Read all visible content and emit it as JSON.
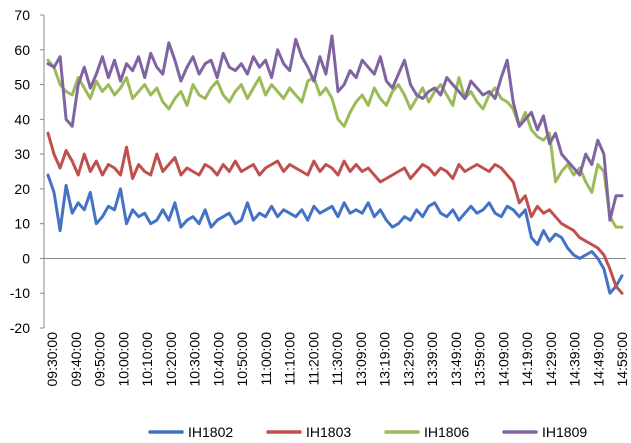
{
  "chart_data": {
    "type": "line",
    "ylim": [
      -20,
      70
    ],
    "yticks": [
      -20,
      -10,
      0,
      10,
      20,
      30,
      40,
      50,
      60,
      70
    ],
    "gridlines": false,
    "legend_position": "bottom",
    "x_tick_labels": [
      "09:30:00",
      "09:40:00",
      "09:50:00",
      "10:00:00",
      "10:10:00",
      "10:20:00",
      "10:30:00",
      "10:40:00",
      "10:50:00",
      "11:00:00",
      "11:10:00",
      "11:20:00",
      "11:30:00",
      "13:09:00",
      "13:19:00",
      "13:29:00",
      "13:39:00",
      "13:49:00",
      "13:59:00",
      "14:09:00",
      "14:19:00",
      "14:29:00",
      "14:39:00",
      "14:49:00",
      "14:59:00"
    ],
    "series": [
      {
        "name": "IH1802",
        "color": "#4472C4",
        "values": [
          24,
          19,
          8,
          21,
          13,
          16,
          14,
          19,
          10,
          12,
          15,
          14,
          20,
          10,
          14,
          12,
          13,
          10,
          11,
          14,
          11,
          16,
          9,
          11,
          12,
          10,
          14,
          9,
          11,
          12,
          13,
          10,
          11,
          16,
          11,
          13,
          12,
          15,
          12,
          14,
          13,
          12,
          14,
          11,
          15,
          13,
          14,
          15,
          12,
          16,
          13,
          14,
          13,
          16,
          12,
          14,
          11,
          9,
          10,
          12,
          11,
          14,
          12,
          15,
          16,
          13,
          12,
          14,
          11,
          13,
          15,
          13,
          14,
          16,
          13,
          12,
          15,
          14,
          12,
          14,
          6,
          4,
          8,
          5,
          7,
          6,
          3,
          1,
          0,
          1,
          2,
          0,
          -3,
          -10,
          -8,
          -5
        ]
      },
      {
        "name": "IH1803",
        "color": "#C0504D",
        "values": [
          36,
          30,
          26,
          31,
          28,
          24,
          30,
          25,
          28,
          24,
          27,
          26,
          24,
          32,
          23,
          27,
          25,
          24,
          30,
          25,
          27,
          29,
          24,
          26,
          25,
          24,
          27,
          26,
          24,
          27,
          25,
          28,
          25,
          26,
          27,
          24,
          26,
          27,
          28,
          25,
          27,
          26,
          25,
          24,
          28,
          25,
          27,
          26,
          24,
          28,
          25,
          27,
          25,
          26,
          24,
          22,
          23,
          24,
          25,
          26,
          23,
          25,
          27,
          26,
          24,
          26,
          25,
          23,
          27,
          25,
          26,
          27,
          26,
          25,
          27,
          26,
          24,
          22,
          16,
          18,
          12,
          15,
          13,
          14,
          12,
          10,
          9,
          8,
          6,
          5,
          4,
          3,
          1,
          -3,
          -8,
          -10
        ]
      },
      {
        "name": "IH1806",
        "color": "#9BBB59",
        "values": [
          57,
          55,
          50,
          48,
          47,
          52,
          49,
          46,
          51,
          48,
          50,
          47,
          49,
          52,
          46,
          48,
          50,
          47,
          49,
          45,
          43,
          46,
          48,
          44,
          50,
          47,
          46,
          49,
          51,
          47,
          45,
          48,
          50,
          46,
          49,
          52,
          47,
          50,
          48,
          46,
          49,
          47,
          45,
          51,
          52,
          47,
          49,
          46,
          40,
          38,
          42,
          45,
          47,
          44,
          49,
          46,
          44,
          48,
          50,
          47,
          43,
          46,
          49,
          45,
          48,
          50,
          47,
          44,
          52,
          46,
          48,
          45,
          43,
          47,
          49,
          46,
          45,
          43,
          38,
          42,
          37,
          35,
          34,
          36,
          22,
          25,
          27,
          24,
          26,
          22,
          19,
          27,
          25,
          12,
          9,
          9
        ]
      },
      {
        "name": "IH1809",
        "color": "#8064A2",
        "values": [
          56,
          55,
          58,
          40,
          38,
          50,
          55,
          49,
          53,
          58,
          52,
          57,
          51,
          56,
          54,
          58,
          52,
          59,
          55,
          53,
          62,
          57,
          51,
          55,
          58,
          53,
          56,
          57,
          52,
          59,
          55,
          54,
          56,
          53,
          58,
          55,
          57,
          52,
          60,
          56,
          54,
          63,
          58,
          55,
          51,
          58,
          53,
          64,
          48,
          50,
          54,
          52,
          57,
          55,
          53,
          58,
          51,
          49,
          53,
          57,
          50,
          47,
          46,
          48,
          49,
          47,
          52,
          50,
          48,
          46,
          51,
          49,
          47,
          48,
          46,
          52,
          57,
          45,
          38,
          40,
          42,
          37,
          41,
          33,
          36,
          30,
          28,
          26,
          24,
          30,
          27,
          34,
          30,
          11,
          18,
          18
        ]
      }
    ]
  }
}
